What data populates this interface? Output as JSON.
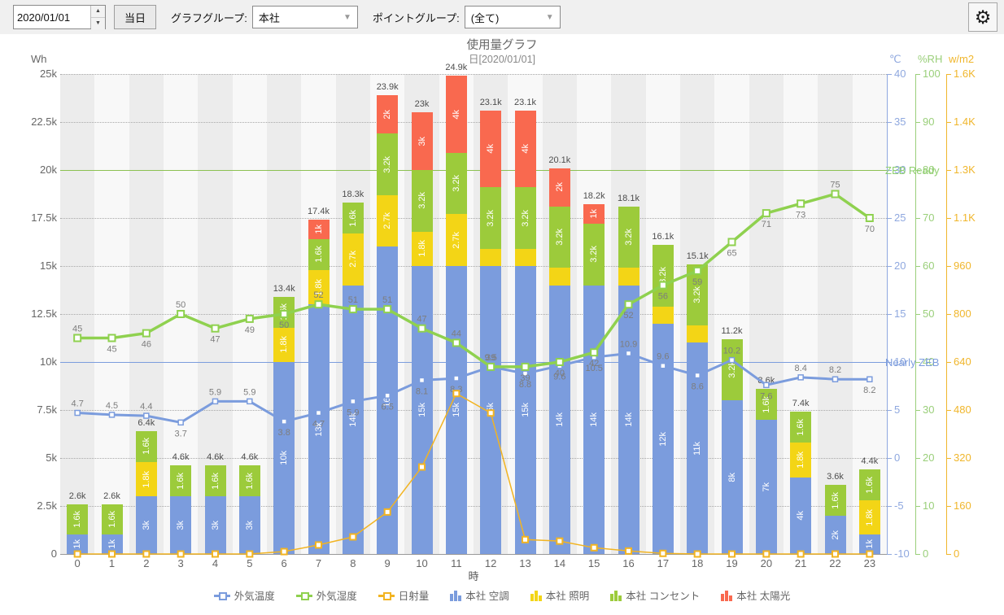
{
  "toolbar": {
    "date_value": "2020/01/01",
    "spinner_up": "▲",
    "spinner_down": "▼",
    "today_button": "当日",
    "graph_group_label": "グラフグループ:",
    "graph_group_value": "本社",
    "point_group_label": "ポイントグループ:",
    "point_group_value": "(全て)",
    "dropdown_arrow": "▼",
    "gear_icon": "⚙"
  },
  "chart": {
    "title": "使用量グラフ",
    "subtitle": "日[2020/01/01]",
    "x_axis_title": "時",
    "y_left_unit": "Wh"
  },
  "chart_data": {
    "type": "combo-stacked-bar-line",
    "title": "使用量グラフ",
    "subtitle": "日[2020/01/01]",
    "xlabel": "時",
    "categories": [
      0,
      1,
      2,
      3,
      4,
      5,
      6,
      7,
      8,
      9,
      10,
      11,
      12,
      13,
      14,
      15,
      16,
      17,
      18,
      19,
      20,
      21,
      22,
      23
    ],
    "y_left": {
      "unit": "Wh",
      "min": 0,
      "max": 25000,
      "ticks": [
        "25k",
        "22.5k",
        "20k",
        "17.5k",
        "15k",
        "12.5k",
        "10k",
        "7.5k",
        "5k",
        "2.5k",
        "0"
      ]
    },
    "y_right_temp": {
      "unit": "℃",
      "min": -10,
      "max": 40,
      "color": "#8fa8df",
      "ticks": [
        "40",
        "35",
        "30",
        "25",
        "20",
        "15",
        "10",
        "5",
        "0",
        "-5",
        "-10"
      ]
    },
    "y_right_rh": {
      "unit": "%RH",
      "min": 0,
      "max": 100,
      "color": "#9acf7a",
      "ticks": [
        "100",
        "90",
        "80",
        "70",
        "60",
        "50",
        "40",
        "30",
        "20",
        "10",
        "0"
      ]
    },
    "y_right_rad": {
      "unit": "w/m2",
      "min": 0,
      "max": 1600,
      "color": "#f0b62c",
      "ticks": [
        "1.6K",
        "1.4K",
        "1.3K",
        "1.1K",
        "960",
        "800",
        "640",
        "480",
        "320",
        "160",
        "0"
      ]
    },
    "bar_series": [
      {
        "key": "ac",
        "name": "本社 空調",
        "color": "#7b9cdd",
        "values": [
          1000,
          1000,
          3000,
          3000,
          3000,
          3000,
          10000,
          13000,
          14000,
          16000,
          15000,
          15000,
          15000,
          15000,
          14000,
          14000,
          14000,
          12000,
          11000,
          8000,
          7000,
          4000,
          2000,
          1000
        ]
      },
      {
        "key": "lighting",
        "name": "本社 照明",
        "color": "#f3d516",
        "values": [
          0,
          0,
          1800,
          0,
          0,
          0,
          1800,
          1800,
          2700,
          2700,
          1800,
          2700,
          900,
          900,
          900,
          0,
          900,
          900,
          900,
          0,
          0,
          1800,
          0,
          1800
        ]
      },
      {
        "key": "outlet",
        "name": "本社 コンセント",
        "color": "#9ccb3b",
        "values": [
          1600,
          1600,
          1600,
          1600,
          1600,
          1600,
          1600,
          1600,
          1600,
          3200,
          3200,
          3200,
          3200,
          3200,
          3200,
          3200,
          3200,
          3200,
          3200,
          3200,
          1600,
          1600,
          1600,
          1600
        ]
      },
      {
        "key": "solar",
        "name": "本社 太陽光",
        "color": "#f9694f",
        "values": [
          0,
          0,
          0,
          0,
          0,
          0,
          0,
          1000,
          0,
          2000,
          3000,
          4000,
          4000,
          4000,
          2000,
          1000,
          0,
          0,
          0,
          0,
          0,
          0,
          0,
          0
        ]
      }
    ],
    "totals": [
      "2.6k",
      "2.6k",
      "6.4k",
      "4.6k",
      "4.6k",
      "4.6k",
      "13.4k",
      "17.4k",
      "18.3k",
      "23.9k",
      "23k",
      "24.9k",
      "23.1k",
      "23.1k",
      "20.1k",
      "18.2k",
      "18.1k",
      "16.1k",
      "15.1k",
      "11.2k",
      "8.6k",
      "7.4k",
      "3.6k",
      "4.4k"
    ],
    "line_series": [
      {
        "key": "outdoor-temp",
        "name": "外気温度",
        "axis": "temp",
        "color": "#7b9cdd",
        "show_labels": true,
        "values": [
          4.7,
          4.5,
          4.4,
          3.7,
          5.9,
          5.9,
          3.8,
          4.7,
          5.9,
          6.5,
          8.1,
          8.3,
          9.5,
          8.8,
          9.6,
          10.5,
          10.9,
          9.6,
          8.6,
          10.2,
          7.6,
          8.4,
          8.2,
          8.2
        ]
      },
      {
        "key": "outdoor-humidity",
        "name": "外気湿度",
        "axis": "rh",
        "color": "#8fd14f",
        "show_labels": true,
        "values": [
          45,
          45,
          46,
          50,
          47,
          49,
          50,
          52,
          51,
          51,
          47,
          44,
          39,
          39,
          40,
          42,
          52,
          56,
          59,
          65,
          71,
          73,
          75,
          70
        ]
      },
      {
        "key": "solar-radiation",
        "name": "日射量",
        "axis": "rad",
        "color": "#f2b422",
        "show_labels": false,
        "values": [
          0,
          0,
          0,
          0,
          0,
          0,
          8,
          30,
          57,
          140,
          290,
          535,
          470,
          48,
          43,
          21,
          10,
          2,
          0,
          0,
          0,
          0,
          0,
          0
        ]
      }
    ],
    "reference_lines": [
      {
        "label": "ZEB Ready",
        "value": 20000,
        "color": "#8cc152",
        "label_color": "#8fcf6f"
      },
      {
        "label": "Nearly ZEB",
        "value": 10000,
        "color": "#7b9cdd",
        "label_color": "#7b9cdd"
      }
    ],
    "legend_position": "bottom",
    "grid": true
  },
  "legend": [
    {
      "key": "outdoor-temp",
      "label": "外気温度",
      "type": "line",
      "color": "#7b9cdd"
    },
    {
      "key": "outdoor-humidity",
      "label": "外気湿度",
      "type": "line",
      "color": "#8fd14f"
    },
    {
      "key": "solar-radiation",
      "label": "日射量",
      "type": "line",
      "color": "#f2b422"
    },
    {
      "key": "hq-ac",
      "label": "本社 空調",
      "type": "bar",
      "color": "#7b9cdd"
    },
    {
      "key": "hq-lighting",
      "label": "本社 照明",
      "type": "bar",
      "color": "#f3d516"
    },
    {
      "key": "hq-outlet",
      "label": "本社 コンセント",
      "type": "bar",
      "color": "#9ccb3b"
    },
    {
      "key": "hq-solar",
      "label": "本社 太陽光",
      "type": "bar",
      "color": "#f9694f"
    }
  ]
}
